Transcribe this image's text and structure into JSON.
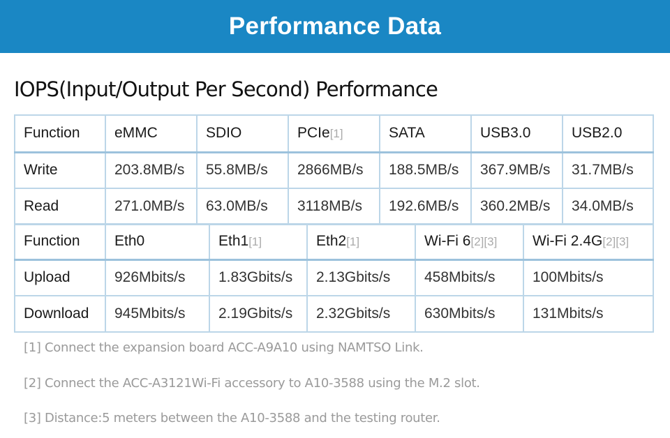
{
  "banner": {
    "title": "Performance Data"
  },
  "section": {
    "title": "IOPS(Input/Output Per Second) Performance"
  },
  "storage_table": {
    "header": [
      {
        "text": "Function",
        "ref": ""
      },
      {
        "text": "eMMC",
        "ref": ""
      },
      {
        "text": "SDIO",
        "ref": ""
      },
      {
        "text": "PCIe",
        "ref": "[1]"
      },
      {
        "text": "SATA",
        "ref": ""
      },
      {
        "text": "USB3.0",
        "ref": ""
      },
      {
        "text": "USB2.0",
        "ref": ""
      }
    ],
    "rows": [
      [
        "Write",
        "203.8MB/s",
        "55.8MB/s",
        "2866MB/s",
        "188.5MB/s",
        "367.9MB/s",
        "31.7MB/s"
      ],
      [
        "Read",
        "271.0MB/s",
        "63.0MB/s",
        "3118MB/s",
        "192.6MB/s",
        "360.2MB/s",
        "34.0MB/s"
      ]
    ]
  },
  "network_table": {
    "header": [
      {
        "text": "Function",
        "ref": ""
      },
      {
        "text": "Eth0",
        "ref": ""
      },
      {
        "text": "Eth1",
        "ref": "[1]"
      },
      {
        "text": "Eth2",
        "ref": "[1]"
      },
      {
        "text": "Wi-Fi 6",
        "ref": "[2][3]"
      },
      {
        "text": "Wi-Fi 2.4G",
        "ref": "[2][3]"
      }
    ],
    "rows": [
      [
        "Upload",
        "926Mbits/s",
        "1.83Gbits/s",
        "2.13Gbits/s",
        "458Mbits/s",
        "100Mbits/s"
      ],
      [
        "Download",
        "945Mbits/s",
        "2.19Gbits/s",
        "2.32Gbits/s",
        "630Mbits/s",
        "131Mbits/s"
      ]
    ]
  },
  "notes": [
    "[1] Connect the expansion board ACC-A9A10 using NAMTSO Link.",
    "[2] Connect the ACC-A3121Wi-Fi accessory to A10-3588 using the M.2 slot.",
    "[3] Distance:5 meters between the A10-3588 and the testing router."
  ]
}
